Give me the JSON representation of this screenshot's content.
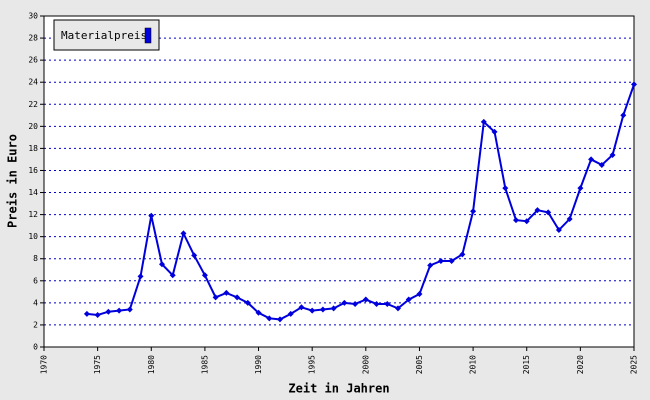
{
  "chart_data": {
    "type": "line",
    "xlabel": "Zeit in Jahren",
    "ylabel": "Preis in Euro",
    "x": [
      1974,
      1975,
      1976,
      1977,
      1978,
      1979,
      1980,
      1981,
      1982,
      1983,
      1984,
      1985,
      1986,
      1987,
      1988,
      1989,
      1990,
      1991,
      1992,
      1993,
      1994,
      1995,
      1996,
      1997,
      1998,
      1999,
      2000,
      2001,
      2002,
      2003,
      2004,
      2005,
      2006,
      2007,
      2008,
      2009,
      2010,
      2011,
      2012,
      2013,
      2014,
      2015,
      2016,
      2017,
      2018,
      2019,
      2020,
      2021,
      2022,
      2023,
      2024,
      2025
    ],
    "series": [
      {
        "name": "Materialpreis",
        "color": "#0000dd",
        "values": [
          3.0,
          2.9,
          3.2,
          3.3,
          3.4,
          6.4,
          11.9,
          7.5,
          6.5,
          10.3,
          8.3,
          6.5,
          4.5,
          4.9,
          4.5,
          4.0,
          3.1,
          2.6,
          2.5,
          3.0,
          3.6,
          3.3,
          3.4,
          3.5,
          4.0,
          3.9,
          4.3,
          3.9,
          3.9,
          3.5,
          4.3,
          4.8,
          7.4,
          7.8,
          7.8,
          8.4,
          12.3,
          20.4,
          19.5,
          14.4,
          11.5,
          11.4,
          12.4,
          12.2,
          10.6,
          11.6,
          14.4,
          17.0,
          16.5,
          17.4,
          21.0,
          23.8
        ]
      }
    ],
    "xlim": [
      1970,
      2025
    ],
    "xticks": [
      1970,
      1975,
      1980,
      1985,
      1990,
      1995,
      2000,
      2005,
      2010,
      2015,
      2020,
      2025
    ],
    "ylim": [
      0,
      30
    ],
    "yticks": [
      0,
      2,
      4,
      6,
      8,
      10,
      12,
      14,
      16,
      18,
      20,
      22,
      24,
      26,
      28,
      30
    ],
    "grid": true,
    "legend": "upper left"
  }
}
